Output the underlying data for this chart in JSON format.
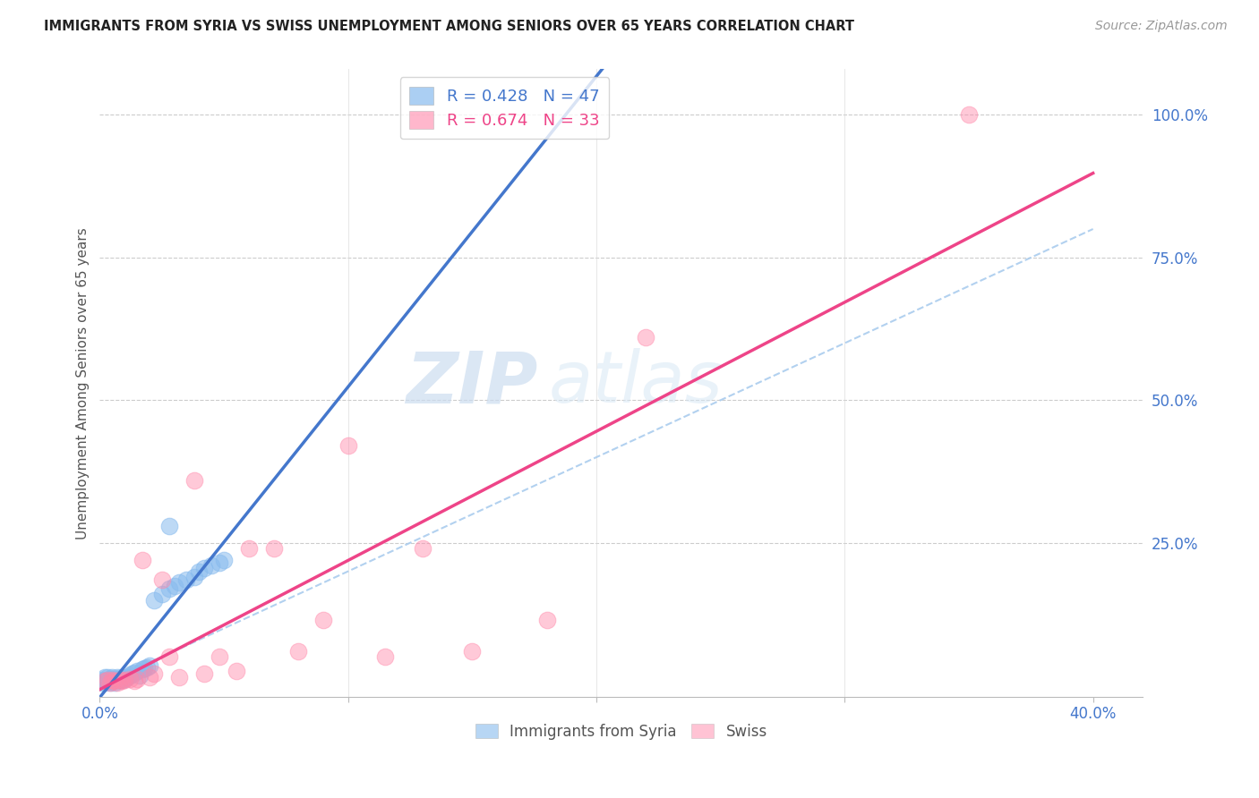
{
  "title": "IMMIGRANTS FROM SYRIA VS SWISS UNEMPLOYMENT AMONG SENIORS OVER 65 YEARS CORRELATION CHART",
  "source": "Source: ZipAtlas.com",
  "ylabel": "Unemployment Among Seniors over 65 years",
  "xlim": [
    0.0,
    0.42
  ],
  "ylim": [
    -0.02,
    1.08
  ],
  "watermark_line1": "ZIP",
  "watermark_line2": "atlas",
  "color_blue": "#88BBEE",
  "color_pink": "#FF88AA",
  "color_line_blue": "#4477CC",
  "color_line_pink": "#EE4488",
  "color_dashed": "#AACCEE",
  "blue_R": 0.428,
  "pink_R": 0.674,
  "blue_N": 47,
  "pink_N": 33,
  "blue_x": [
    0.001,
    0.001,
    0.002,
    0.002,
    0.002,
    0.003,
    0.003,
    0.003,
    0.004,
    0.004,
    0.004,
    0.005,
    0.005,
    0.005,
    0.006,
    0.006,
    0.006,
    0.007,
    0.007,
    0.008,
    0.008,
    0.009,
    0.009,
    0.01,
    0.011,
    0.012,
    0.013,
    0.014,
    0.015,
    0.016,
    0.017,
    0.018,
    0.019,
    0.02,
    0.022,
    0.025,
    0.028,
    0.03,
    0.032,
    0.035,
    0.038,
    0.04,
    0.042,
    0.045,
    0.048,
    0.05,
    0.028
  ],
  "blue_y": [
    0.005,
    0.01,
    0.008,
    0.015,
    0.005,
    0.01,
    0.008,
    0.015,
    0.01,
    0.012,
    0.005,
    0.01,
    0.015,
    0.008,
    0.01,
    0.012,
    0.005,
    0.01,
    0.015,
    0.01,
    0.012,
    0.01,
    0.015,
    0.012,
    0.015,
    0.018,
    0.02,
    0.022,
    0.025,
    0.018,
    0.028,
    0.03,
    0.032,
    0.035,
    0.15,
    0.16,
    0.17,
    0.175,
    0.18,
    0.185,
    0.19,
    0.2,
    0.205,
    0.21,
    0.215,
    0.22,
    0.28
  ],
  "pink_x": [
    0.002,
    0.003,
    0.004,
    0.005,
    0.006,
    0.007,
    0.008,
    0.009,
    0.01,
    0.012,
    0.014,
    0.015,
    0.017,
    0.02,
    0.022,
    0.025,
    0.028,
    0.032,
    0.038,
    0.042,
    0.048,
    0.055,
    0.06,
    0.07,
    0.08,
    0.09,
    0.1,
    0.115,
    0.13,
    0.15,
    0.18,
    0.22,
    0.35
  ],
  "pink_y": [
    0.008,
    0.01,
    0.005,
    0.01,
    0.008,
    0.005,
    0.01,
    0.008,
    0.01,
    0.012,
    0.008,
    0.012,
    0.22,
    0.015,
    0.02,
    0.185,
    0.05,
    0.015,
    0.36,
    0.02,
    0.05,
    0.025,
    0.24,
    0.24,
    0.06,
    0.115,
    0.42,
    0.05,
    0.24,
    0.06,
    0.115,
    0.61,
    1.0
  ]
}
